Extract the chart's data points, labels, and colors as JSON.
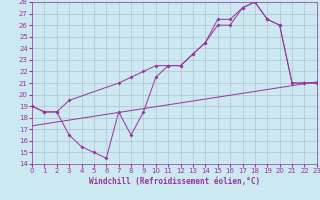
{
  "xlabel": "Windchill (Refroidissement éolien,°C)",
  "bg_color": "#cce8f0",
  "grid_color": "#aabbcc",
  "line_color": "#993399",
  "spine_color": "#993399",
  "xlim": [
    0,
    23
  ],
  "ylim": [
    14,
    28
  ],
  "xticks": [
    0,
    1,
    2,
    3,
    4,
    5,
    6,
    7,
    8,
    9,
    10,
    11,
    12,
    13,
    14,
    15,
    16,
    17,
    18,
    19,
    20,
    21,
    22,
    23
  ],
  "yticks": [
    14,
    15,
    16,
    17,
    18,
    19,
    20,
    21,
    22,
    23,
    24,
    25,
    26,
    27,
    28
  ],
  "line1_x": [
    0,
    1,
    2,
    3,
    4,
    5,
    6,
    7,
    8,
    9,
    10,
    11,
    12,
    13,
    14,
    15,
    16,
    17,
    18,
    19,
    20,
    21,
    22,
    23
  ],
  "line1_y": [
    19,
    18.5,
    18.5,
    16.5,
    15.5,
    15.0,
    14.5,
    18.5,
    16.5,
    18.5,
    21.5,
    22.5,
    22.5,
    23.5,
    24.5,
    26.5,
    26.5,
    27.5,
    28.0,
    26.5,
    26.0,
    21.0,
    21.0,
    21.0
  ],
  "line2_x": [
    0,
    1,
    2,
    3,
    7,
    8,
    9,
    10,
    11,
    12,
    13,
    14,
    15,
    16,
    17,
    18,
    19,
    20,
    21,
    22,
    23
  ],
  "line2_y": [
    19,
    18.5,
    18.5,
    19.5,
    21.0,
    21.5,
    22.0,
    22.5,
    22.5,
    22.5,
    23.5,
    24.5,
    26.0,
    26.0,
    27.5,
    28.0,
    26.5,
    26.0,
    21.0,
    21.0,
    21.0
  ],
  "line3_x": [
    0,
    23
  ],
  "line3_y": [
    17.3,
    21.1
  ],
  "tick_fontsize": 5,
  "xlabel_fontsize": 5.5,
  "lw": 0.7,
  "ms": 2.0
}
